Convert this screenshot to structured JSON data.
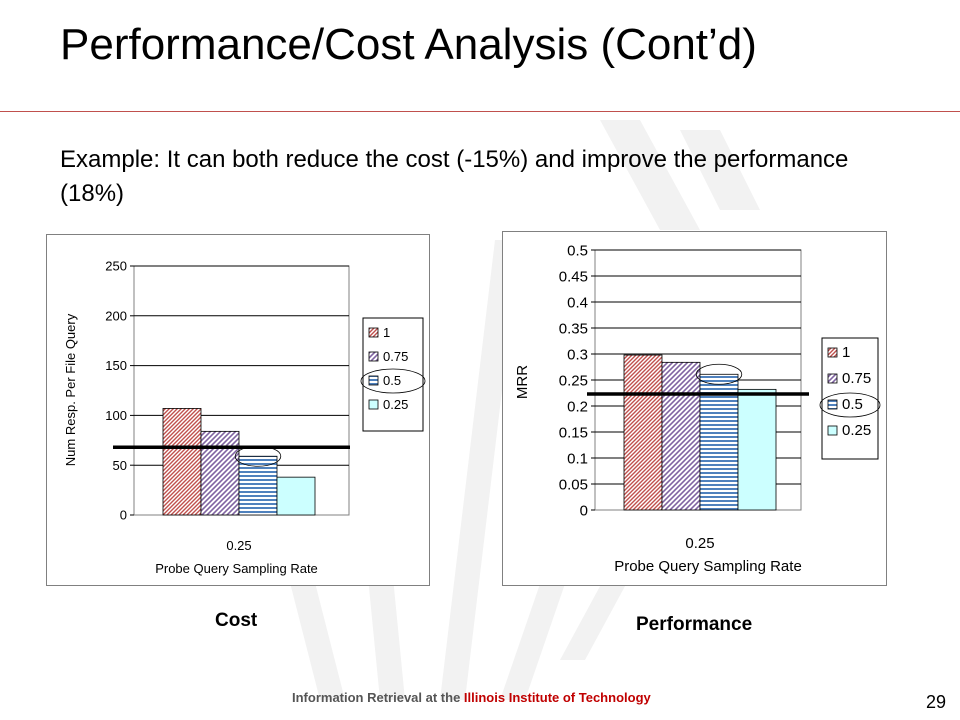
{
  "title": "Performance/Cost Analysis (Cont’d)",
  "subtitle": "Example: It can both reduce the cost (-15%) and improve the performance (18%)",
  "colors": {
    "rule": "#c0504d",
    "series": [
      "#c0504d",
      "#8064a2",
      "#4f81bd",
      "#ccffff"
    ]
  },
  "charts": [
    {
      "caption": "Cost"
    },
    {
      "caption": "Performance"
    }
  ],
  "footer": {
    "prefix": "Information Retrieval at the ",
    "brand": "Illinois Institute of Technology"
  },
  "page_number": "29",
  "chart_data": [
    {
      "type": "bar",
      "categories": [
        "0.25"
      ],
      "xlabel": "Probe Query Sampling Rate",
      "ylabel": "Num Resp. Per File Query",
      "ylim": [
        0,
        250
      ],
      "yticks": [
        "0",
        "50",
        "100",
        "150",
        "200",
        "250"
      ],
      "grid": true,
      "legend_position": "right",
      "series": [
        {
          "name": "1",
          "values": [
            107
          ]
        },
        {
          "name": "0.75",
          "values": [
            84
          ]
        },
        {
          "name": "0.5",
          "values": [
            59
          ]
        },
        {
          "name": "0.25",
          "values": [
            38
          ]
        }
      ],
      "reference_line": 68,
      "highlighted_series": "0.5"
    },
    {
      "type": "bar",
      "categories": [
        "0.25"
      ],
      "xlabel": "Probe Query Sampling Rate",
      "ylabel": "MRR",
      "ylim": [
        0,
        0.5
      ],
      "yticks": [
        "0",
        "0.05",
        "0.1",
        "0.15",
        "0.2",
        "0.25",
        "0.3",
        "0.35",
        "0.4",
        "0.45",
        "0.5"
      ],
      "grid": true,
      "legend_position": "right",
      "series": [
        {
          "name": "1",
          "values": [
            0.298
          ]
        },
        {
          "name": "0.75",
          "values": [
            0.284
          ]
        },
        {
          "name": "0.5",
          "values": [
            0.261
          ]
        },
        {
          "name": "0.25",
          "values": [
            0.232
          ]
        }
      ],
      "reference_line": 0.223,
      "highlighted_series": "0.5"
    }
  ]
}
